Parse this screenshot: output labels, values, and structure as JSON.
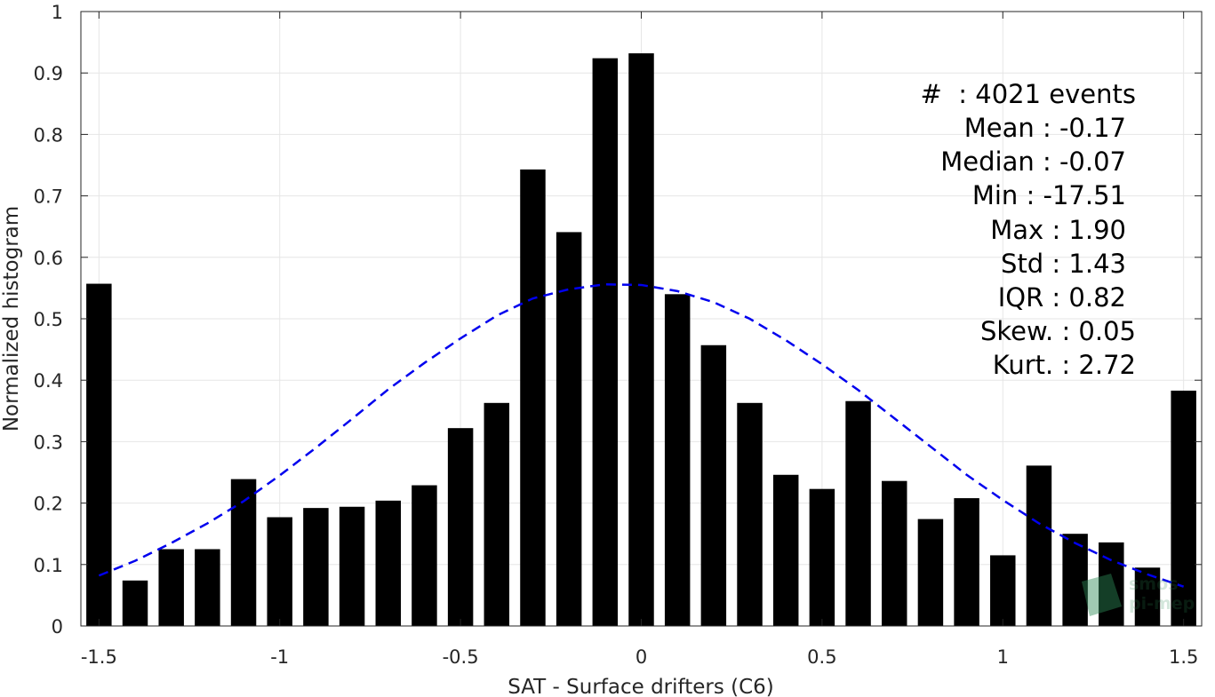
{
  "chart_data": {
    "type": "bar",
    "xlabel": "SAT - Surface drifters (C6)",
    "ylabel": "Normalized histogram",
    "xlim": [
      -1.55,
      1.55
    ],
    "ylim": [
      0,
      1
    ],
    "grid": true,
    "xticks": [
      -1.5,
      -1,
      -0.5,
      0,
      0.5,
      1,
      1.5
    ],
    "xtick_labels": [
      "-1.5",
      "-1",
      "-0.5",
      "0",
      "0.5",
      "1",
      "1.5"
    ],
    "yticks": [
      0,
      0.1,
      0.2,
      0.3,
      0.4,
      0.5,
      0.6,
      0.7,
      0.8,
      0.9,
      1
    ],
    "ytick_labels": [
      "0",
      "0.1",
      "0.2",
      "0.3",
      "0.4",
      "0.5",
      "0.6",
      "0.7",
      "0.8",
      "0.9",
      "1"
    ],
    "bar_color": "#000000",
    "bar_width": 0.07,
    "x": [
      -1.5,
      -1.4,
      -1.3,
      -1.2,
      -1.1,
      -1.0,
      -0.9,
      -0.8,
      -0.7,
      -0.6,
      -0.5,
      -0.4,
      -0.3,
      -0.2,
      -0.1,
      0.0,
      0.1,
      0.2,
      0.3,
      0.4,
      0.5,
      0.6,
      0.7,
      0.8,
      0.9,
      1.0,
      1.1,
      1.2,
      1.3,
      1.4,
      1.5
    ],
    "values": [
      0.557,
      0.074,
      0.125,
      0.125,
      0.239,
      0.177,
      0.192,
      0.194,
      0.204,
      0.229,
      0.322,
      0.363,
      0.743,
      0.641,
      0.924,
      0.932,
      0.54,
      0.457,
      0.363,
      0.246,
      0.223,
      0.366,
      0.236,
      0.174,
      0.208,
      0.115,
      0.261,
      0.15,
      0.136,
      0.095,
      0.383
    ],
    "fit_curve": {
      "color": "#0000ee",
      "style": "dashed",
      "x": [
        -1.5,
        -1.4,
        -1.3,
        -1.2,
        -1.1,
        -1.0,
        -0.9,
        -0.8,
        -0.7,
        -0.6,
        -0.5,
        -0.4,
        -0.3,
        -0.2,
        -0.1,
        0.0,
        0.1,
        0.2,
        0.3,
        0.4,
        0.5,
        0.6,
        0.7,
        0.8,
        0.9,
        1.0,
        1.1,
        1.2,
        1.3,
        1.4,
        1.5
      ],
      "y": [
        0.082,
        0.106,
        0.135,
        0.167,
        0.203,
        0.245,
        0.29,
        0.337,
        0.385,
        0.428,
        0.468,
        0.505,
        0.533,
        0.548,
        0.556,
        0.555,
        0.545,
        0.527,
        0.5,
        0.465,
        0.426,
        0.384,
        0.338,
        0.292,
        0.246,
        0.205,
        0.167,
        0.135,
        0.107,
        0.084,
        0.064
      ]
    },
    "stats": {
      "events": "#  : 4021 events",
      "mean": "Mean : -0.17",
      "median": "Median : -0.07",
      "min": "Min : -17.51",
      "max": "Max : 1.90",
      "std": "Std : 1.43",
      "iqr": "IQR : 0.82",
      "skew": "Skew. : 0.05",
      "kurt": "Kurt. : 2.72"
    }
  },
  "watermark": {
    "line1": "smos",
    "line2": "pi-mep"
  }
}
